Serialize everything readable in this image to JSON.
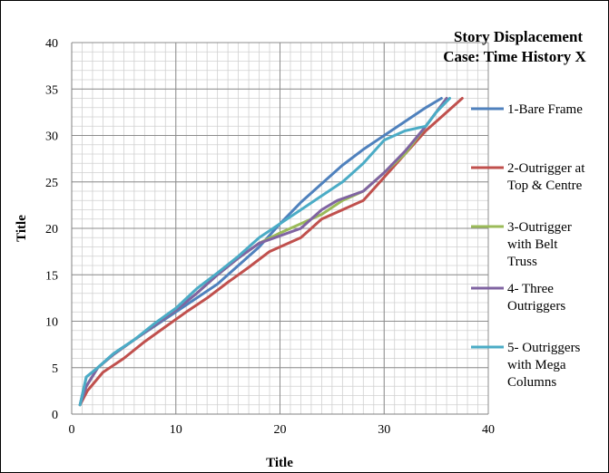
{
  "chart_data": {
    "type": "line",
    "title_lines": [
      "Story Displacement",
      "Case: Time History X"
    ],
    "xlabel": "Title",
    "ylabel": "Title",
    "xlim": [
      0,
      40
    ],
    "ylim": [
      0,
      40
    ],
    "xticks": [
      0,
      10,
      20,
      30,
      40
    ],
    "yticks": [
      0,
      5,
      10,
      15,
      20,
      25,
      30,
      35,
      40
    ],
    "grid": true,
    "legend_position": "right",
    "series": [
      {
        "name_lines": [
          "1-Bare Frame"
        ],
        "color": "#4F81BD",
        "x": [
          0.8,
          1.4,
          2.5,
          4.0,
          6.0,
          8.0,
          10.0,
          12.0,
          14.0,
          16.0,
          18.0,
          20.0,
          22.0,
          24.0,
          26.0,
          28.0,
          30.0,
          32.0,
          34.0,
          35.5
        ],
        "y": [
          1,
          4,
          5,
          6.5,
          8,
          9.5,
          11,
          12.5,
          14,
          16,
          18,
          20.5,
          22.8,
          24.8,
          26.8,
          28.5,
          30,
          31.5,
          33,
          34
        ]
      },
      {
        "name_lines": [
          "2-Outrigger at",
          "Top & Centre"
        ],
        "color": "#C0504D",
        "x": [
          0.8,
          1.5,
          3.0,
          5.0,
          7.0,
          9.0,
          11.0,
          13.0,
          15.0,
          17.0,
          19.0,
          20.0,
          22.0,
          24.0,
          26.0,
          28.0,
          30.0,
          32.0,
          34.0,
          36.0,
          37.5
        ],
        "y": [
          1,
          2.5,
          4.5,
          6,
          7.8,
          9.4,
          11,
          12.5,
          14.2,
          15.8,
          17.5,
          18,
          19,
          21,
          22,
          23,
          25.5,
          28,
          30.5,
          32.5,
          34
        ]
      },
      {
        "name_lines": [
          "3-Outrigger",
          "with Belt",
          "Truss"
        ],
        "color": "#9BBB59",
        "x": [
          0.8,
          1.4,
          2.5,
          4.0,
          6.0,
          8.0,
          10.0,
          12.0,
          14.0,
          16.0,
          18.0,
          20.0,
          22.0,
          24.0,
          26.0,
          28.0,
          30.0,
          32.0,
          34.0,
          36.0
        ],
        "y": [
          1,
          3,
          5,
          6.4,
          8,
          9.6,
          11.2,
          13,
          15,
          16.8,
          18.4,
          19.5,
          20.5,
          21.5,
          23,
          24,
          26,
          28,
          31,
          34
        ]
      },
      {
        "name_lines": [
          "4- Three",
          "Outriggers"
        ],
        "color": "#8064A2",
        "x": [
          0.8,
          1.4,
          2.5,
          4.0,
          6.0,
          8.0,
          10.0,
          12.0,
          14.0,
          16.0,
          18.0,
          19.5,
          22.0,
          24.0,
          25.5,
          28.0,
          30.0,
          32.0,
          34.0,
          36.0
        ],
        "y": [
          1,
          3,
          5,
          6.4,
          8,
          9.6,
          11.2,
          13,
          15,
          16.8,
          18.4,
          19,
          20,
          22,
          23,
          24,
          26,
          28.3,
          31,
          34
        ]
      },
      {
        "name_lines": [
          "5- Outriggers",
          "with Mega",
          "Columns"
        ],
        "color": "#4BACC6",
        "x": [
          0.8,
          1.4,
          2.5,
          4.0,
          6.0,
          8.0,
          10.0,
          12.0,
          14.0,
          16.0,
          18.0,
          20.0,
          22.0,
          24.0,
          26.0,
          28.0,
          30.0,
          32.0,
          34.0,
          35.0,
          36.3
        ],
        "y": [
          1,
          4,
          5,
          6.5,
          8,
          9.8,
          11.4,
          13.5,
          15.2,
          17,
          19,
          20.5,
          22,
          23.5,
          25,
          27,
          29.5,
          30.5,
          31,
          32.5,
          34
        ]
      }
    ]
  }
}
